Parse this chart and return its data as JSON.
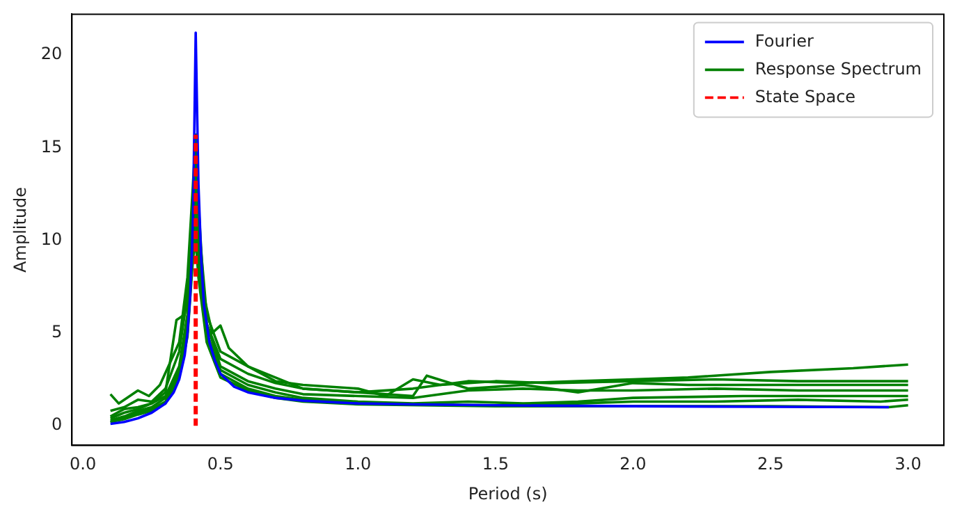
{
  "chart_data": {
    "type": "line",
    "xlabel": "Period (s)",
    "ylabel": "Amplitude",
    "xlim": [
      -0.04,
      3.13
    ],
    "ylim": [
      -1.06,
      22.2
    ],
    "xticks": [
      {
        "value": 0,
        "label": "0.0"
      },
      0.5,
      {
        "value": 1,
        "label": "1.0"
      },
      1.5,
      {
        "value": 2,
        "label": "2.0"
      },
      2.5,
      {
        "value": 3,
        "label": "3.0"
      }
    ],
    "yticks": [
      0,
      5,
      10,
      15,
      20
    ],
    "grid": false,
    "legend": "top right",
    "marker": "none",
    "series": [
      {
        "name": "Fourier",
        "color": "#0000ff",
        "x": [
          0.1,
          0.15,
          0.2,
          0.25,
          0.3,
          0.33,
          0.35,
          0.37,
          0.38,
          0.39,
          0.4,
          0.405,
          0.41,
          0.415,
          0.42,
          0.43,
          0.44,
          0.46,
          0.48,
          0.5,
          0.55,
          0.6,
          0.7,
          0.8,
          1.0,
          1.2,
          1.5,
          2.0,
          2.5,
          2.93
        ],
        "values": [
          0.1,
          0.2,
          0.4,
          0.7,
          1.2,
          1.8,
          2.5,
          3.8,
          5,
          7,
          11,
          16,
          21.2,
          17,
          13,
          9,
          6.5,
          4.5,
          3.5,
          2.8,
          2.1,
          1.8,
          1.5,
          1.35,
          1.2,
          1.15,
          1.1,
          1.05,
          1.02,
          1.0
        ]
      },
      {
        "name": "Response Spectrum",
        "color": "#008000",
        "x": [
          0.1,
          0.13,
          0.16,
          0.2,
          0.24,
          0.28,
          0.32,
          0.35,
          0.38,
          0.4,
          0.41,
          0.42,
          0.44,
          0.47,
          0.5,
          0.53,
          0.6,
          0.7,
          0.8,
          0.9,
          1.0,
          1.2,
          1.4,
          1.6,
          1.8,
          2.0,
          2.2,
          2.5,
          2.8,
          3.0
        ],
        "values": [
          1.7,
          1.2,
          1.5,
          1.9,
          1.6,
          2.2,
          3.5,
          4.5,
          8,
          13,
          15.7,
          12,
          7,
          5,
          5.4,
          4.2,
          3.2,
          2.6,
          2.0,
          1.9,
          1.8,
          2.0,
          2.4,
          2.3,
          2.4,
          2.5,
          2.6,
          2.9,
          3.1,
          3.3
        ]
      },
      {
        "color": "#008000",
        "x": [
          0.1,
          0.15,
          0.2,
          0.25,
          0.3,
          0.35,
          0.38,
          0.4,
          0.41,
          0.42,
          0.45,
          0.5,
          0.6,
          0.7,
          0.8,
          1.0,
          1.1,
          1.2,
          1.3,
          1.5,
          1.7,
          2.0,
          2.3,
          2.6,
          3.0
        ],
        "values": [
          0.8,
          1.0,
          1.4,
          1.3,
          2.0,
          4.0,
          7,
          12,
          15,
          11,
          6,
          4,
          3.2,
          2.4,
          2.2,
          2.0,
          1.6,
          2.5,
          2.2,
          2.4,
          2.3,
          2.4,
          2.5,
          2.4,
          2.4
        ]
      },
      {
        "color": "#008000",
        "x": [
          0.1,
          0.15,
          0.2,
          0.25,
          0.3,
          0.34,
          0.37,
          0.4,
          0.41,
          0.42,
          0.45,
          0.5,
          0.6,
          0.7,
          0.8,
          1.0,
          1.2,
          1.25,
          1.4,
          1.6,
          1.8,
          2.0,
          2.2,
          2.5,
          3.0
        ],
        "values": [
          0.5,
          0.9,
          1.0,
          1.2,
          1.8,
          5.7,
          6,
          11,
          14,
          10,
          5.5,
          3.6,
          2.8,
          2.3,
          2.0,
          1.8,
          1.6,
          2.7,
          2.0,
          2.2,
          1.8,
          2.3,
          2.2,
          2.2,
          2.2
        ]
      },
      {
        "color": "#008000",
        "x": [
          0.1,
          0.15,
          0.2,
          0.25,
          0.3,
          0.35,
          0.38,
          0.4,
          0.41,
          0.42,
          0.45,
          0.5,
          0.6,
          0.7,
          0.8,
          1.0,
          1.2,
          1.4,
          1.6,
          1.8,
          2.0,
          2.3,
          2.6,
          3.0
        ],
        "values": [
          0.4,
          0.7,
          0.9,
          1.2,
          1.6,
          3.2,
          6,
          11,
          13,
          9.5,
          5.5,
          3.2,
          2.4,
          2.0,
          1.7,
          1.6,
          1.5,
          1.9,
          2.0,
          1.9,
          1.9,
          2.0,
          1.9,
          1.9
        ]
      },
      {
        "color": "#008000",
        "x": [
          0.1,
          0.15,
          0.2,
          0.25,
          0.3,
          0.35,
          0.38,
          0.4,
          0.41,
          0.42,
          0.45,
          0.5,
          0.6,
          0.7,
          0.8,
          1.0,
          1.2,
          1.4,
          1.6,
          1.8,
          2.0,
          2.4,
          2.7,
          3.0
        ],
        "values": [
          0.3,
          0.5,
          0.8,
          1.0,
          1.5,
          3.0,
          5.5,
          10,
          12,
          9,
          5,
          3.0,
          2.2,
          1.8,
          1.5,
          1.3,
          1.2,
          1.3,
          1.2,
          1.3,
          1.5,
          1.6,
          1.6,
          1.6
        ]
      },
      {
        "color": "#008000",
        "x": [
          0.1,
          0.15,
          0.2,
          0.25,
          0.3,
          0.35,
          0.38,
          0.4,
          0.41,
          0.42,
          0.45,
          0.5,
          0.6,
          0.7,
          0.8,
          1.0,
          1.2,
          1.5,
          1.8,
          2.0,
          2.3,
          2.6,
          2.9,
          3.0
        ],
        "values": [
          0.2,
          0.4,
          0.7,
          0.9,
          1.3,
          2.8,
          5,
          9.5,
          11,
          8.5,
          4.8,
          2.8,
          2.0,
          1.6,
          1.4,
          1.2,
          1.15,
          1.1,
          1.2,
          1.3,
          1.3,
          1.4,
          1.3,
          1.4
        ]
      },
      {
        "color": "#008000",
        "x": [
          0.1,
          0.15,
          0.2,
          0.25,
          0.3,
          0.35,
          0.38,
          0.4,
          0.41,
          0.42,
          0.45,
          0.5,
          0.6,
          0.7,
          0.8,
          1.0,
          1.5,
          2.0,
          2.5,
          2.93,
          3.0
        ],
        "values": [
          0.2,
          0.35,
          0.6,
          0.8,
          1.2,
          2.6,
          4.8,
          9,
          10,
          8,
          4.5,
          2.6,
          1.9,
          1.5,
          1.3,
          1.15,
          1.05,
          1.05,
          1.05,
          1.0,
          1.1
        ]
      },
      {
        "name": "State Space",
        "color": "#ff0000",
        "line_style": "dashed",
        "x": [
          0.41,
          0.41
        ],
        "values": [
          0,
          15.7
        ]
      }
    ]
  }
}
